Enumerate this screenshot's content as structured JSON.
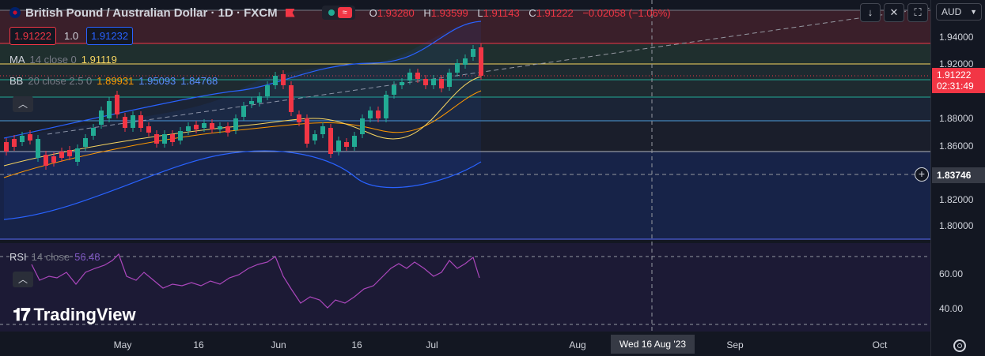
{
  "header": {
    "symbol": "British Pound / Australian Dollar · 1D · FXCM",
    "ohlc": [
      {
        "k": "O",
        "v": "1.93280"
      },
      {
        "k": "H",
        "v": "1.93599"
      },
      {
        "k": "L",
        "v": "1.91143"
      },
      {
        "k": "C",
        "v": "1.91222"
      }
    ],
    "change": "−0.02058 (−1.06%)"
  },
  "price_boxes": {
    "sell": "1.91222",
    "spread": "1.0",
    "buy": "1.91232"
  },
  "indicators": {
    "ma": {
      "name": "MA",
      "params": "14 close 0",
      "value": "1.91119"
    },
    "bb": {
      "name": "BB",
      "params": "20 close 2.5 0",
      "basis": "1.89931",
      "upper": "1.95093",
      "lower": "1.84768"
    },
    "rsi": {
      "name": "RSI",
      "params": "14 close",
      "value": "56.48"
    }
  },
  "toolbar": {
    "currency": "AUD",
    "down_icon": "arrow-down-icon",
    "expand_icon": "expand-icon",
    "fullscreen_icon": "fullscreen-icon"
  },
  "price_axis": {
    "ticks": [
      "1.94000",
      "1.92000",
      "1.88000",
      "1.86000",
      "1.82000",
      "1.80000"
    ],
    "last_price": "1.91222",
    "countdown": "02:31:49",
    "crosshair_price": "1.83746"
  },
  "rsi_axis": {
    "ticks": [
      "60.00",
      "40.00"
    ]
  },
  "time_axis": {
    "ticks": [
      "May",
      "16",
      "Jun",
      "16",
      "Jul",
      "Aug",
      "Sep",
      "Oct"
    ],
    "crosshair_time": "Wed 16 Aug '23"
  },
  "logo": {
    "text": "TradingView"
  },
  "colors": {
    "up": "#22ab94",
    "down": "#f23645",
    "ma": "#f7d560",
    "bb_basis": "#ff9800",
    "bb_band": "#2962ff",
    "rsi": "#7e57c2",
    "background": "#131722"
  }
}
